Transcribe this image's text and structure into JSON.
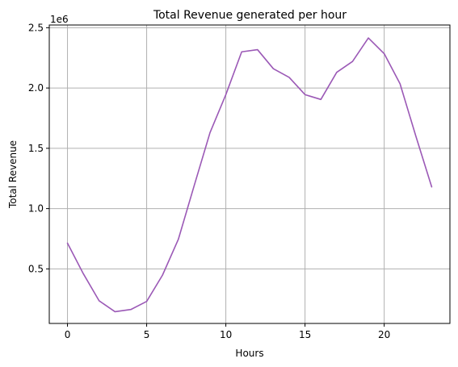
{
  "chart_data": {
    "type": "line",
    "title": "Total Revenue generated per hour",
    "xlabel": "Hours",
    "ylabel": "Total Revenue",
    "y_offset_label": "1e6",
    "xlim": [
      -1.15,
      24.15
    ],
    "ylim": [
      0.0475,
      2.5225
    ],
    "y_scale_factor": 1000000,
    "grid": true,
    "x_ticks": [
      0,
      5,
      10,
      15,
      20
    ],
    "x_tick_labels": [
      "0",
      "5",
      "10",
      "15",
      "20"
    ],
    "y_ticks": [
      0.5,
      1.0,
      1.5,
      2.0,
      2.5
    ],
    "y_tick_labels": [
      "0.5",
      "1.0",
      "1.5",
      "2.0",
      "2.5"
    ],
    "series": [
      {
        "color": "#9b59b6",
        "x": [
          0,
          1,
          2,
          3,
          4,
          5,
          6,
          7,
          8,
          9,
          10,
          11,
          12,
          13,
          14,
          15,
          16,
          17,
          18,
          19,
          20,
          21,
          22,
          23
        ],
        "y": [
          713000,
          460000,
          235000,
          145000,
          163000,
          230000,
          448000,
          745000,
          1190000,
          1630000,
          1945000,
          2300000,
          2318000,
          2160000,
          2088000,
          1945000,
          1905000,
          2130000,
          2220000,
          2415000,
          2285000,
          2035000,
          1600000,
          1180000
        ]
      }
    ]
  }
}
